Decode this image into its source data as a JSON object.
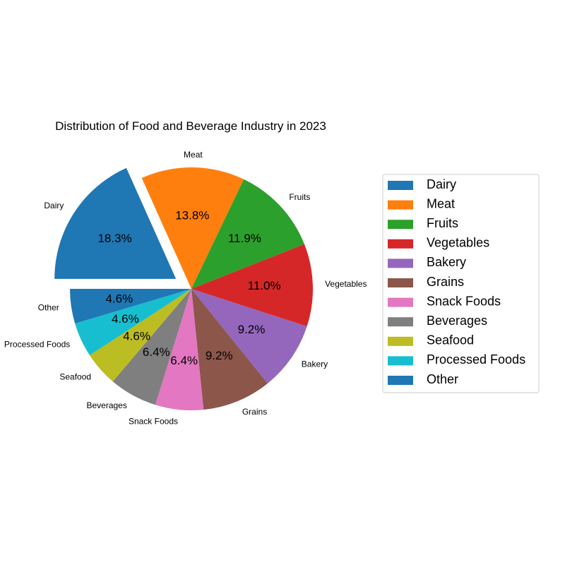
{
  "chart_data": {
    "type": "pie",
    "title": "Distribution of Food and Beverage Industry in 2023",
    "start_angle_deg": 180,
    "direction": "clockwise",
    "exploded": [
      "Dairy"
    ],
    "legend_position": "right",
    "slices": [
      {
        "name": "Dairy",
        "value": 18.3,
        "pct_label": "18.3%",
        "color": "#1f77b4"
      },
      {
        "name": "Meat",
        "value": 13.8,
        "pct_label": "13.8%",
        "color": "#ff7f0e"
      },
      {
        "name": "Fruits",
        "value": 11.9,
        "pct_label": "11.9%",
        "color": "#2ca02c"
      },
      {
        "name": "Vegetables",
        "value": 11.0,
        "pct_label": "11.0%",
        "color": "#d62728"
      },
      {
        "name": "Bakery",
        "value": 9.2,
        "pct_label": "9.2%",
        "color": "#9467bd"
      },
      {
        "name": "Grains",
        "value": 9.2,
        "pct_label": "9.2%",
        "color": "#8c564b"
      },
      {
        "name": "Snack Foods",
        "value": 6.4,
        "pct_label": "6.4%",
        "color": "#e377c2"
      },
      {
        "name": "Beverages",
        "value": 6.4,
        "pct_label": "6.4%",
        "color": "#7f7f7f"
      },
      {
        "name": "Seafood",
        "value": 4.6,
        "pct_label": "4.6%",
        "color": "#bcbd22"
      },
      {
        "name": "Processed Foods",
        "value": 4.6,
        "pct_label": "4.6%",
        "color": "#17becf"
      },
      {
        "name": "Other",
        "value": 4.6,
        "pct_label": "4.6%",
        "color": "#1f77b4"
      }
    ]
  }
}
